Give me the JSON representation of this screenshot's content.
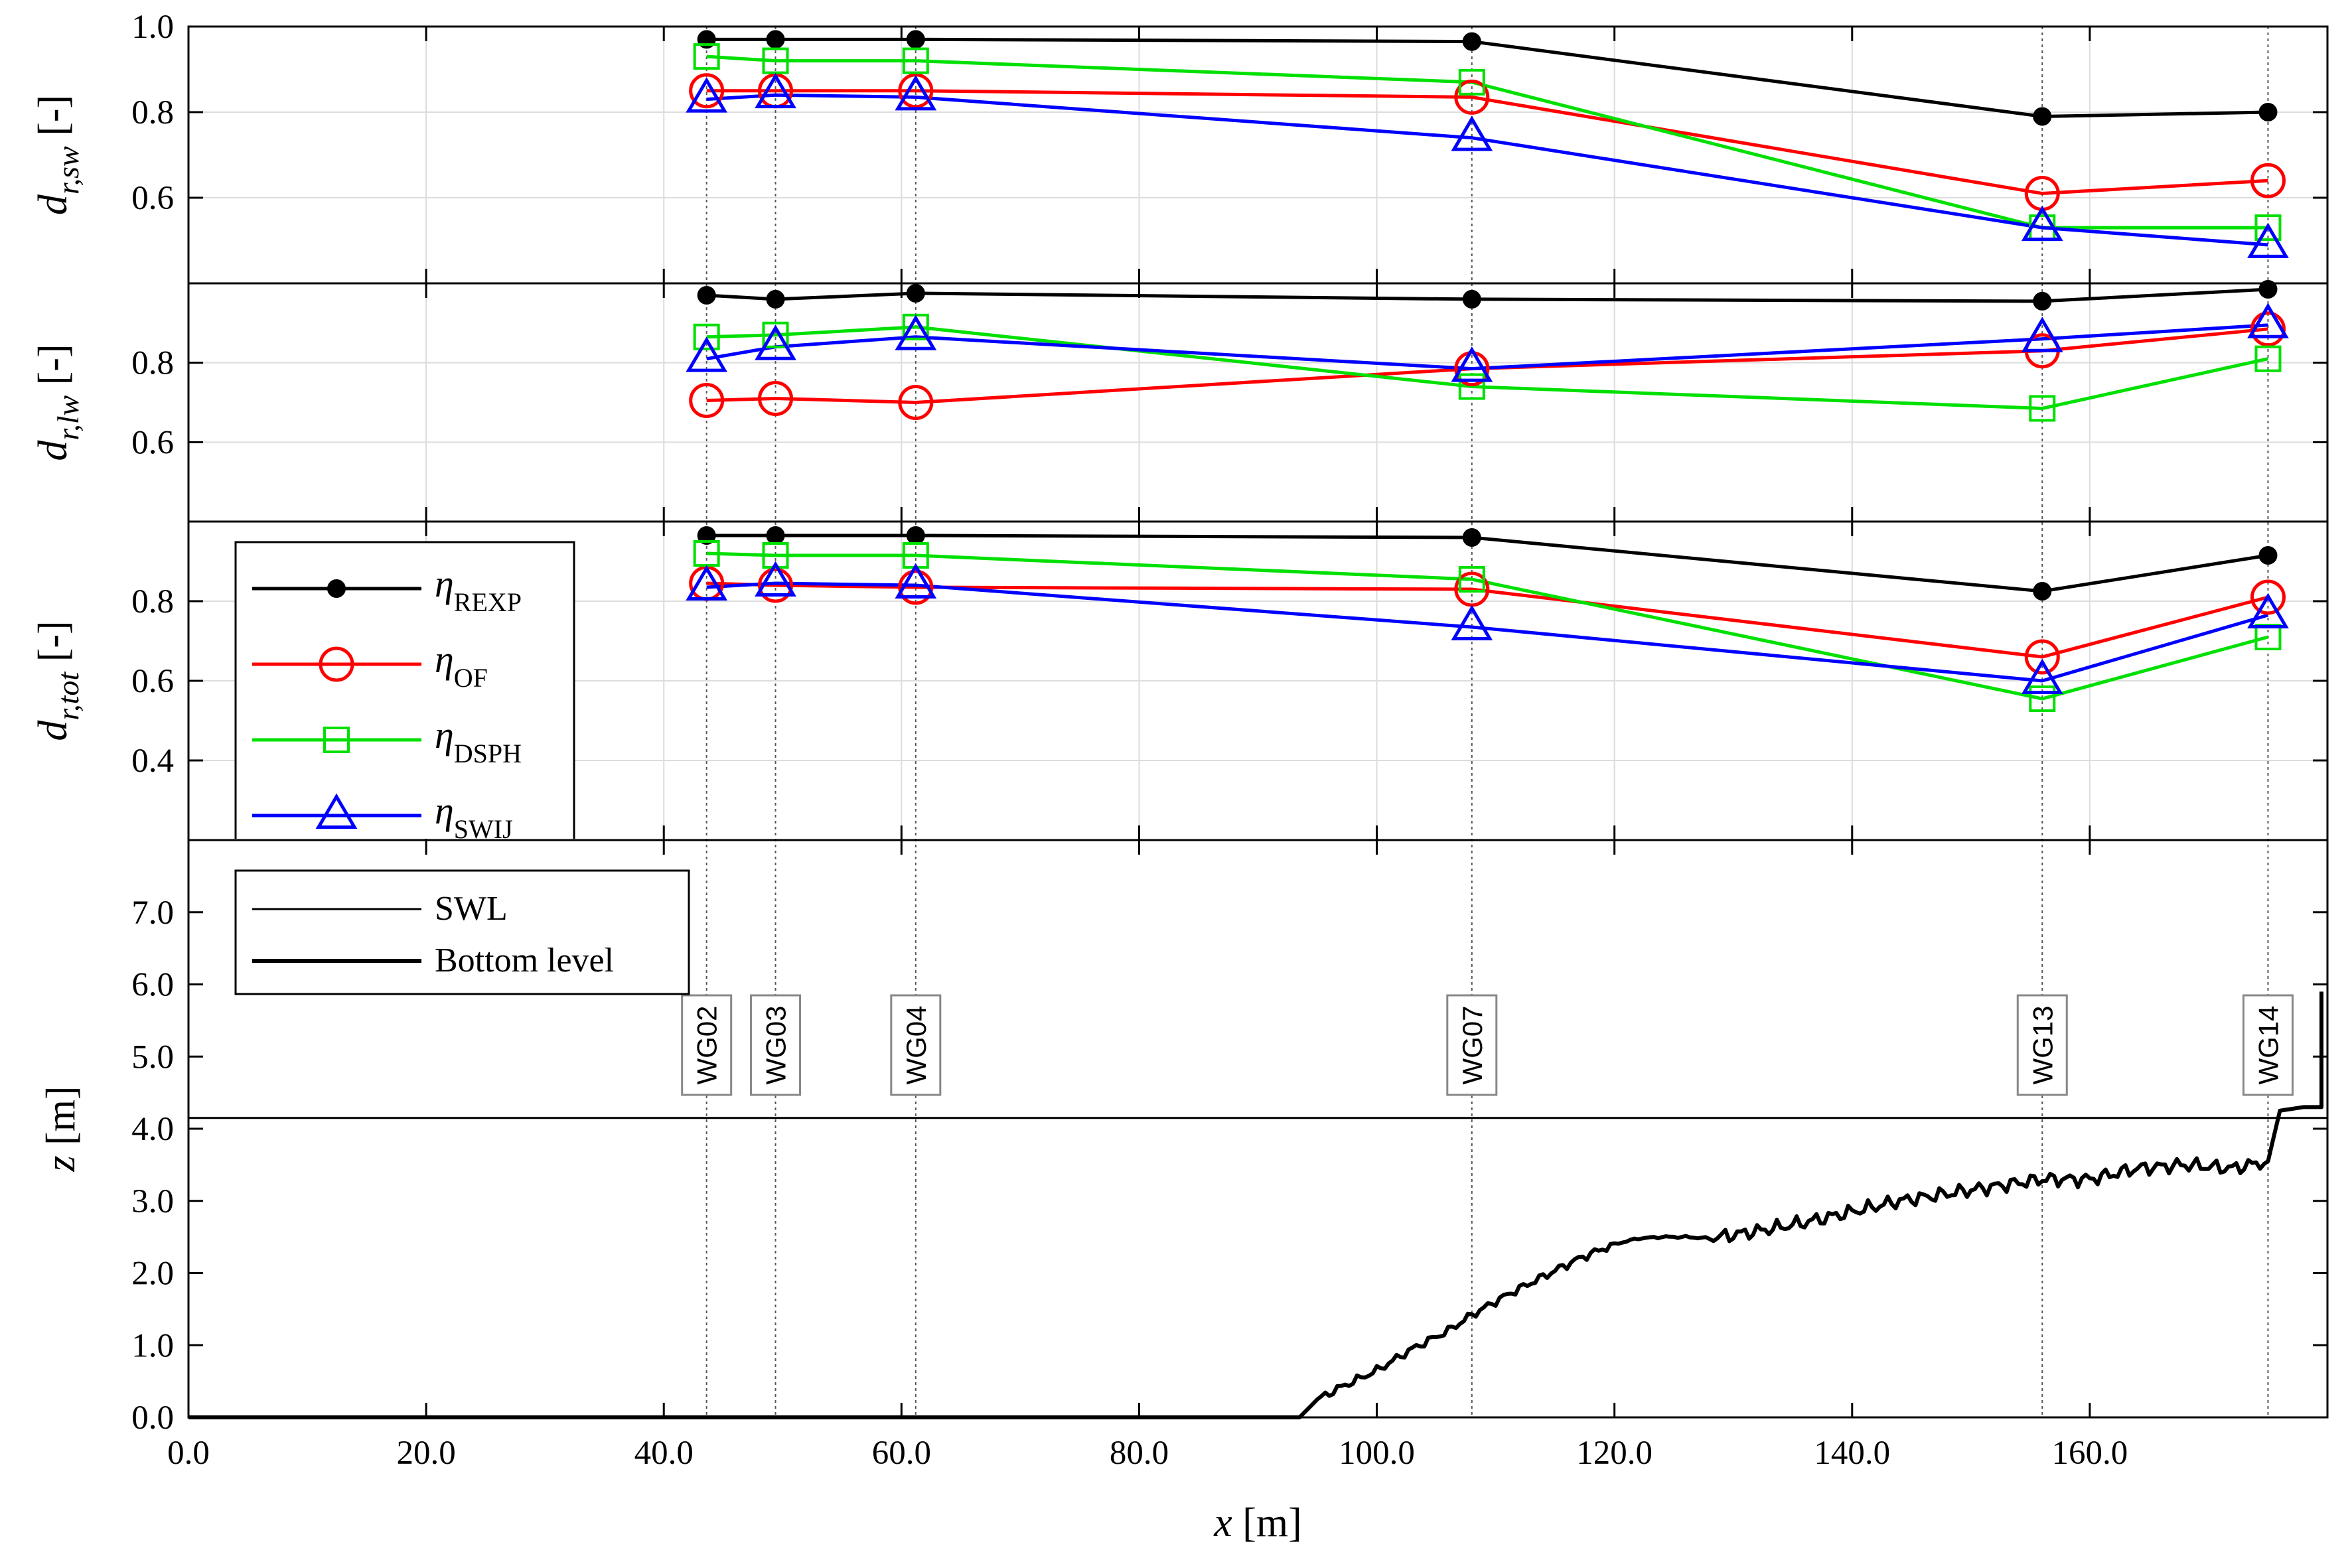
{
  "chart_data": {
    "type": "line",
    "x_positions": [
      43.6,
      49.4,
      61.2,
      108.0,
      156.0,
      175.0
    ],
    "xlim": [
      0,
      180
    ],
    "xticks": [
      0,
      20,
      40,
      60,
      80,
      100,
      120,
      140,
      160
    ],
    "xtick_labels": [
      "0.0",
      "20.0",
      "40.0",
      "60.0",
      "80.0",
      "100.0",
      "120.0",
      "140.0",
      "160.0"
    ],
    "xlabel": {
      "sym": "x",
      "unit": " [m]"
    },
    "colors": {
      "REXP": "#000000",
      "OF": "#ff0000",
      "DSPH": "#00e000",
      "SWIJ": "#0000ff"
    },
    "series_order": [
      "REXP",
      "OF",
      "DSPH",
      "SWIJ"
    ],
    "panels": [
      {
        "id": "sw",
        "ylabel": {
          "sym": "d",
          "sub": "r,sw",
          "unit": " [-]"
        },
        "ylim": [
          0.4,
          1.0
        ],
        "yticks": [
          0.6,
          0.8,
          1.0
        ],
        "ytick_labels": [
          "0.6",
          "0.8",
          "1.0"
        ],
        "series": {
          "REXP": [
            0.97,
            0.97,
            0.97,
            0.965,
            0.79,
            0.8
          ],
          "OF": [
            0.85,
            0.85,
            0.85,
            0.835,
            0.61,
            0.64
          ],
          "DSPH": [
            0.93,
            0.92,
            0.92,
            0.87,
            0.53,
            0.53
          ],
          "SWIJ": [
            0.83,
            0.84,
            0.835,
            0.74,
            0.53,
            0.49
          ]
        }
      },
      {
        "id": "lw",
        "ylabel": {
          "sym": "d",
          "sub": "r,lw",
          "unit": " [-]"
        },
        "ylim": [
          0.4,
          1.0
        ],
        "yticks": [
          0.6,
          0.8
        ],
        "ytick_labels": [
          "0.6",
          "0.8"
        ],
        "series": {
          "REXP": [
            0.97,
            0.96,
            0.975,
            0.96,
            0.955,
            0.985
          ],
          "OF": [
            0.705,
            0.71,
            0.7,
            0.785,
            0.83,
            0.885
          ],
          "DSPH": [
            0.865,
            0.87,
            0.89,
            0.74,
            0.685,
            0.81
          ],
          "SWIJ": [
            0.81,
            0.84,
            0.865,
            0.785,
            0.86,
            0.895
          ]
        }
      },
      {
        "id": "tot",
        "ylabel": {
          "sym": "d",
          "sub": "r,tot",
          "unit": " [-]"
        },
        "ylim": [
          0.2,
          1.0
        ],
        "yticks": [
          0.4,
          0.6,
          0.8
        ],
        "ytick_labels": [
          "0.4",
          "0.6",
          "0.8"
        ],
        "series": {
          "REXP": [
            0.965,
            0.965,
            0.965,
            0.96,
            0.825,
            0.915
          ],
          "OF": [
            0.845,
            0.84,
            0.835,
            0.83,
            0.66,
            0.81
          ],
          "DSPH": [
            0.92,
            0.915,
            0.915,
            0.855,
            0.555,
            0.71
          ],
          "SWIJ": [
            0.835,
            0.845,
            0.84,
            0.735,
            0.6,
            0.765
          ]
        }
      }
    ],
    "legend_top": {
      "entries": [
        {
          "key": "REXP",
          "sym": "η",
          "sub": "REXP"
        },
        {
          "key": "OF",
          "sym": "η",
          "sub": "OF"
        },
        {
          "key": "DSPH",
          "sym": "η",
          "sub": "DSPH"
        },
        {
          "key": "SWIJ",
          "sym": "η",
          "sub": "SWIJ"
        }
      ]
    },
    "bottom_panel": {
      "ylabel": {
        "sym": "z",
        "unit": " [m]"
      },
      "ylim": [
        0,
        8
      ],
      "yticks": [
        0,
        1,
        2,
        3,
        4,
        5,
        6,
        7
      ],
      "ytick_labels": [
        "0.0",
        "1.0",
        "2.0",
        "3.0",
        "4.0",
        "5.0",
        "6.0",
        "7.0"
      ],
      "swl": 4.15,
      "bottom_profile": {
        "x": [
          0,
          93.5,
          95,
          97,
          100,
          103,
          106,
          108,
          111,
          114,
          117,
          120,
          122,
          124,
          126,
          128,
          132,
          136,
          140,
          144,
          148,
          152,
          156,
          160,
          164,
          168,
          172,
          175,
          176,
          178,
          179.5,
          179.5
        ],
        "z": [
          0,
          0,
          0.25,
          0.42,
          0.65,
          0.95,
          1.2,
          1.42,
          1.7,
          1.95,
          2.2,
          2.4,
          2.48,
          2.5,
          2.5,
          2.48,
          2.58,
          2.7,
          2.85,
          3.0,
          3.1,
          3.2,
          3.3,
          3.3,
          3.45,
          3.5,
          3.45,
          3.55,
          4.25,
          4.3,
          4.3,
          5.9
        ]
      },
      "legend": {
        "swl_label": "SWL",
        "bottom_label": "Bottom level"
      },
      "gauges": [
        "WG02",
        "WG03",
        "WG04",
        "WG07",
        "WG13",
        "WG14"
      ]
    }
  }
}
